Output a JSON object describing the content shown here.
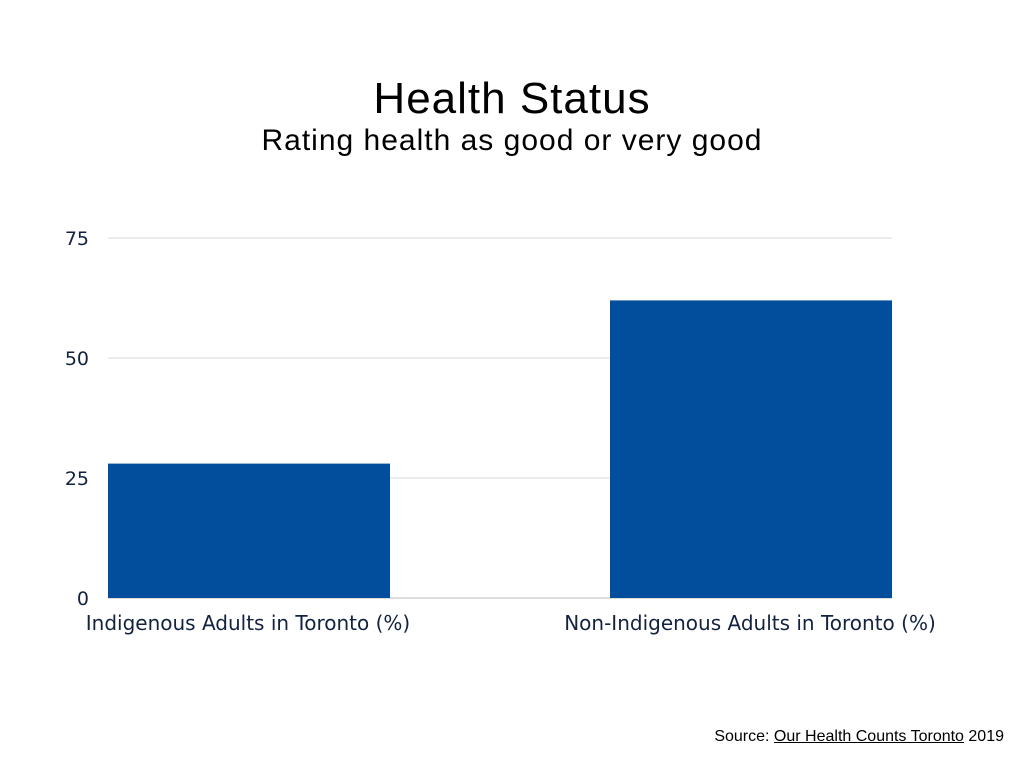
{
  "chart_data": {
    "type": "bar",
    "title": "Health Status",
    "subtitle": "Rating health as good or very good",
    "categories": [
      "Indigenous Adults in Toronto (%)",
      "Non-Indigenous Adults in Toronto (%)"
    ],
    "values": [
      28,
      62
    ],
    "ylim": [
      0,
      75
    ],
    "yticks": [
      0,
      25,
      50,
      75
    ],
    "grid": true,
    "xlabel": "",
    "ylabel": "",
    "bar_color": "#034e9c",
    "gridline_color": "#d9d9d9"
  },
  "source": {
    "prefix": "Source: ",
    "link_text": "Our Health Counts Toronto",
    "suffix": " 2019"
  }
}
